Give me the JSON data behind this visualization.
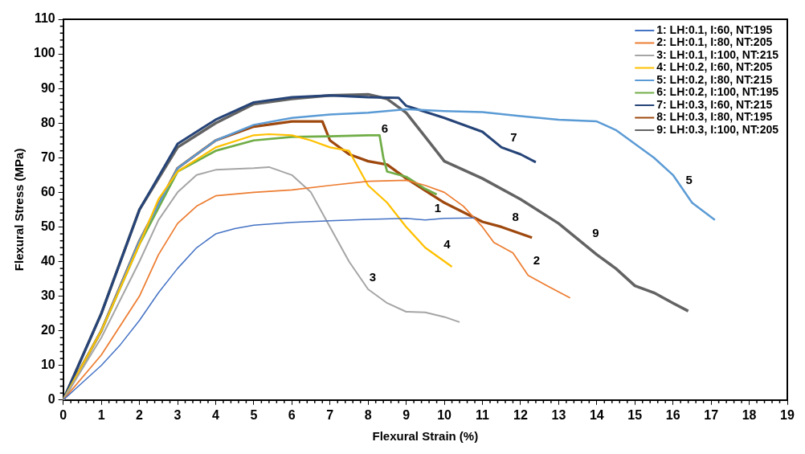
{
  "chart_data": {
    "type": "line",
    "xlabel": "Flexural Strain (%)",
    "ylabel": "Flexural Stress (MPa)",
    "xlim": [
      0,
      19
    ],
    "ylim": [
      0,
      110
    ],
    "xticks": [
      0,
      1,
      2,
      3,
      4,
      5,
      6,
      7,
      8,
      9,
      10,
      11,
      12,
      13,
      14,
      15,
      16,
      17,
      18,
      19
    ],
    "yticks": [
      0,
      10,
      20,
      30,
      40,
      50,
      60,
      70,
      80,
      90,
      100,
      110
    ],
    "grid": false,
    "legend": "top right",
    "marker": "none",
    "line_style": "solid",
    "series": [
      {
        "name": "1: LH:0.1, I:60, NT:195",
        "color": "#4472c4",
        "x": [
          0,
          0.5,
          1,
          1.5,
          2,
          2.5,
          3,
          3.5,
          4,
          4.5,
          5,
          6,
          7,
          8,
          9,
          9.5,
          10,
          10.8
        ],
        "values": [
          0,
          5,
          10,
          16,
          23,
          31,
          38,
          44,
          48,
          49.5,
          50.5,
          51.3,
          51.8,
          52.2,
          52.5,
          52,
          52.5,
          52.6
        ]
      },
      {
        "name": "2: LH:0.1, I:80, NT:205",
        "color": "#ed7d31",
        "x": [
          0,
          1,
          2,
          2.5,
          3,
          3.5,
          4,
          5,
          6,
          7,
          8,
          9,
          9.5,
          10,
          10.5,
          11,
          11.3,
          11.8,
          12.2,
          12.7,
          13.3
        ],
        "values": [
          0,
          13,
          30,
          42,
          51,
          56,
          59,
          60,
          60.7,
          62,
          63.2,
          63.5,
          62,
          60,
          56,
          50,
          45.5,
          42.5,
          36,
          33,
          29.5
        ]
      },
      {
        "name": "3: LH:0.1, I:100, NT:215",
        "color": "#a5a5a5",
        "x": [
          0,
          1,
          2,
          2.5,
          3,
          3.5,
          4,
          5,
          5.4,
          6,
          6.5,
          7,
          7.5,
          8,
          8.5,
          9,
          9.5,
          10,
          10.4
        ],
        "values": [
          0,
          18,
          40,
          52,
          60,
          65,
          66.5,
          67,
          67.3,
          65,
          60,
          50,
          40,
          32,
          28,
          25.5,
          25.3,
          24,
          22.5
        ]
      },
      {
        "name": "4: LH:0.2, I:60, NT:205",
        "color": "#ffc000",
        "x": [
          0,
          1,
          2,
          2.5,
          3,
          4,
          5,
          5.4,
          6,
          6.5,
          7,
          7.5,
          8,
          8.5,
          9,
          9.5,
          10.2
        ],
        "values": [
          0,
          20,
          45,
          58,
          66,
          73,
          76.5,
          76.8,
          76.5,
          75,
          73,
          72,
          62,
          57,
          50,
          44,
          38.5
        ]
      },
      {
        "name": "5: LH:0.2, I:80, NT:215",
        "color": "#5b9bd5",
        "x": [
          0,
          1,
          2,
          3,
          4,
          5,
          6,
          7,
          8,
          9,
          10,
          11,
          12,
          13,
          14,
          14.5,
          15,
          15.5,
          16,
          16.5,
          17.1
        ],
        "values": [
          0,
          20,
          46,
          67,
          75,
          79.5,
          81.5,
          82.5,
          83,
          84,
          83.5,
          83.2,
          82,
          81,
          80.5,
          78,
          74,
          70,
          65,
          57,
          52
        ]
      },
      {
        "name": "6: LH:0.2, I:100, NT:195",
        "color": "#70ad47",
        "x": [
          0,
          1,
          2,
          3,
          4,
          5,
          6,
          7,
          8,
          8.3,
          8.4,
          8.5,
          9,
          9.5,
          9.8
        ],
        "values": [
          0,
          20,
          45,
          66,
          72,
          75,
          76,
          76.2,
          76.5,
          76.5,
          70,
          66,
          64.5,
          61,
          59.4
        ]
      },
      {
        "name": "7: LH:0.3, I:60, NT:215",
        "color": "#264478",
        "x": [
          0,
          1,
          2,
          3,
          4,
          5,
          6,
          7,
          8,
          8.8,
          9,
          10,
          11,
          11.5,
          12,
          12.4
        ],
        "values": [
          0,
          25,
          55,
          74,
          81,
          86,
          87.5,
          88,
          87.5,
          87.3,
          85,
          81.5,
          77.5,
          73,
          71,
          68.7
        ]
      },
      {
        "name": "8: LH:0.3, I:80, NT:195",
        "color": "#9e480e",
        "x": [
          0,
          1,
          2,
          3,
          4,
          5,
          6,
          6.8,
          7,
          7.5,
          8,
          8.5,
          9,
          10,
          11,
          11.5,
          12.3
        ],
        "values": [
          0,
          20,
          46,
          67,
          75,
          79,
          80.5,
          80.5,
          75,
          71,
          69,
          68,
          64,
          57,
          51.5,
          50,
          46.9
        ]
      },
      {
        "name": "9: LH:0.3, I:100, NT:205",
        "color": "#636363",
        "x": [
          0,
          1,
          2,
          3,
          4,
          5,
          6,
          7,
          8,
          8.5,
          9,
          9.5,
          10,
          11,
          12,
          13,
          14,
          14.5,
          15,
          15.5,
          16,
          16.4
        ],
        "values": [
          0,
          25,
          55,
          73,
          80,
          85.5,
          87,
          88,
          88.3,
          87,
          83,
          76,
          69,
          64,
          58,
          51,
          42,
          38,
          33,
          31,
          28,
          25.7
        ]
      }
    ],
    "annotations": [
      {
        "text": "1",
        "x": 9.66,
        "y": 52.4
      },
      {
        "text": "2",
        "x": 12.25,
        "y": 37.4
      },
      {
        "text": "3",
        "x": 7.95,
        "y": 32.5
      },
      {
        "text": "4",
        "x": 9.9,
        "y": 42
      },
      {
        "text": "5",
        "x": 16.25,
        "y": 60.5
      },
      {
        "text": "6",
        "x": 8.27,
        "y": 75.4
      },
      {
        "text": "7",
        "x": 11.65,
        "y": 72.9
      },
      {
        "text": "8",
        "x": 11.7,
        "y": 49.9
      },
      {
        "text": "9",
        "x": 13.8,
        "y": 45.2
      }
    ]
  }
}
